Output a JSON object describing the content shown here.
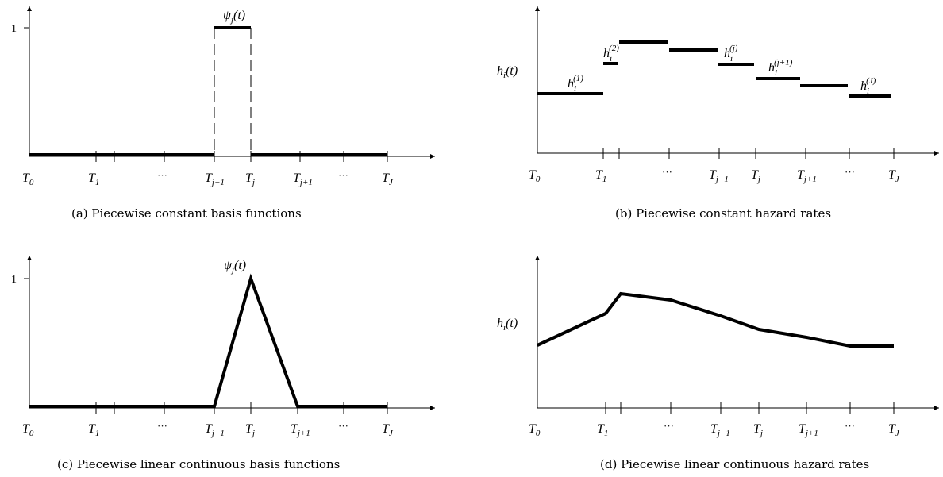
{
  "panels": [
    {
      "id": "a",
      "caption": "(a) Piecewise constant basis functions",
      "y_one": "1",
      "curve_label_main": "ψ",
      "curve_label_sub": "j",
      "curve_label_tail": "(t)",
      "ticks": [
        {
          "main": "T",
          "sub": "0"
        },
        {
          "main": "T",
          "sub": "1"
        },
        {
          "main": "",
          "sub": ""
        },
        {
          "main": "···",
          "sub": ""
        },
        {
          "main": "T",
          "sub": "j−1"
        },
        {
          "main": "T",
          "sub": "j"
        },
        {
          "main": "T",
          "sub": "j+1"
        },
        {
          "main": "···",
          "sub": ""
        },
        {
          "main": "T",
          "sub": "J"
        }
      ]
    },
    {
      "id": "b",
      "caption": "(b) Piecewise constant hazard rates",
      "y_label_main": "h",
      "y_label_sub": "i",
      "y_label_tail": "(t)",
      "segment_labels": [
        {
          "main": "h",
          "sub": "i",
          "sup": "(1)"
        },
        {
          "main": "h",
          "sub": "i",
          "sup": "(2)"
        },
        {
          "main": "h",
          "sub": "i",
          "sup": "(j)"
        },
        {
          "main": "h",
          "sub": "i",
          "sup": "(j+1)"
        },
        {
          "main": "h",
          "sub": "i",
          "sup": "(J)"
        }
      ],
      "ticks": [
        {
          "main": "T",
          "sub": "0"
        },
        {
          "main": "T",
          "sub": "1"
        },
        {
          "main": "···",
          "sub": ""
        },
        {
          "main": "T",
          "sub": "j−1"
        },
        {
          "main": "T",
          "sub": "j"
        },
        {
          "main": "T",
          "sub": "j+1"
        },
        {
          "main": "···",
          "sub": ""
        },
        {
          "main": "T",
          "sub": "J"
        }
      ]
    },
    {
      "id": "c",
      "caption": "(c) Piecewise linear continuous basis functions",
      "y_one": "1",
      "curve_label_main": "ψ",
      "curve_label_sub": "j",
      "curve_label_tail": "(t)",
      "ticks": [
        {
          "main": "T",
          "sub": "0"
        },
        {
          "main": "T",
          "sub": "1"
        },
        {
          "main": "···",
          "sub": ""
        },
        {
          "main": "T",
          "sub": "j−1"
        },
        {
          "main": "T",
          "sub": "j"
        },
        {
          "main": "T",
          "sub": "j+1"
        },
        {
          "main": "···",
          "sub": ""
        },
        {
          "main": "T",
          "sub": "J"
        }
      ]
    },
    {
      "id": "d",
      "caption": "(d) Piecewise linear continuous hazard rates",
      "y_label_main": "h",
      "y_label_sub": "i",
      "y_label_tail": "(t)",
      "ticks": [
        {
          "main": "T",
          "sub": "0"
        },
        {
          "main": "T",
          "sub": "1"
        },
        {
          "main": "···",
          "sub": ""
        },
        {
          "main": "T",
          "sub": "j−1"
        },
        {
          "main": "T",
          "sub": "j"
        },
        {
          "main": "T",
          "sub": "j+1"
        },
        {
          "main": "···",
          "sub": ""
        },
        {
          "main": "T",
          "sub": "J"
        }
      ]
    }
  ]
}
